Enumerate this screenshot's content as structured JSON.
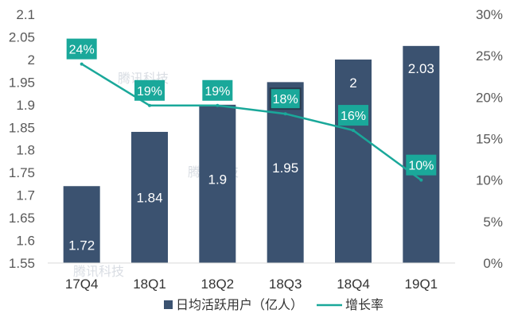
{
  "chart_data": {
    "type": "bar",
    "categories": [
      "17Q4",
      "18Q1",
      "18Q2",
      "18Q3",
      "18Q4",
      "19Q1"
    ],
    "series": [
      {
        "name": "日均活跃用户（亿人）",
        "type": "bar",
        "axis": "left",
        "values": [
          1.72,
          1.84,
          1.9,
          1.95,
          2,
          2.03
        ],
        "labels": [
          "1.72",
          "1.84",
          "1.9",
          "1.95",
          "2",
          "2.03"
        ],
        "color": "#3b5270"
      },
      {
        "name": "增长率",
        "type": "line",
        "axis": "right",
        "values": [
          24,
          19,
          19,
          18,
          16,
          10
        ],
        "labels": [
          "24%",
          "19%",
          "19%",
          "18%",
          "16%",
          "10%"
        ],
        "color": "#1aa89a"
      }
    ],
    "y_left": {
      "ylim": [
        1.55,
        2.1
      ],
      "ticks": [
        "2.1",
        "2.05",
        "2",
        "1.95",
        "1.9",
        "1.85",
        "1.8",
        "1.75",
        "1.7",
        "1.65",
        "1.6",
        "1.55"
      ]
    },
    "y_right": {
      "ylim": [
        0,
        30
      ],
      "ticks": [
        "30%",
        "25%",
        "20%",
        "15%",
        "10%",
        "5%",
        "0%"
      ]
    },
    "legend_position": "bottom",
    "watermark": "腾讯科技",
    "grid": false
  }
}
